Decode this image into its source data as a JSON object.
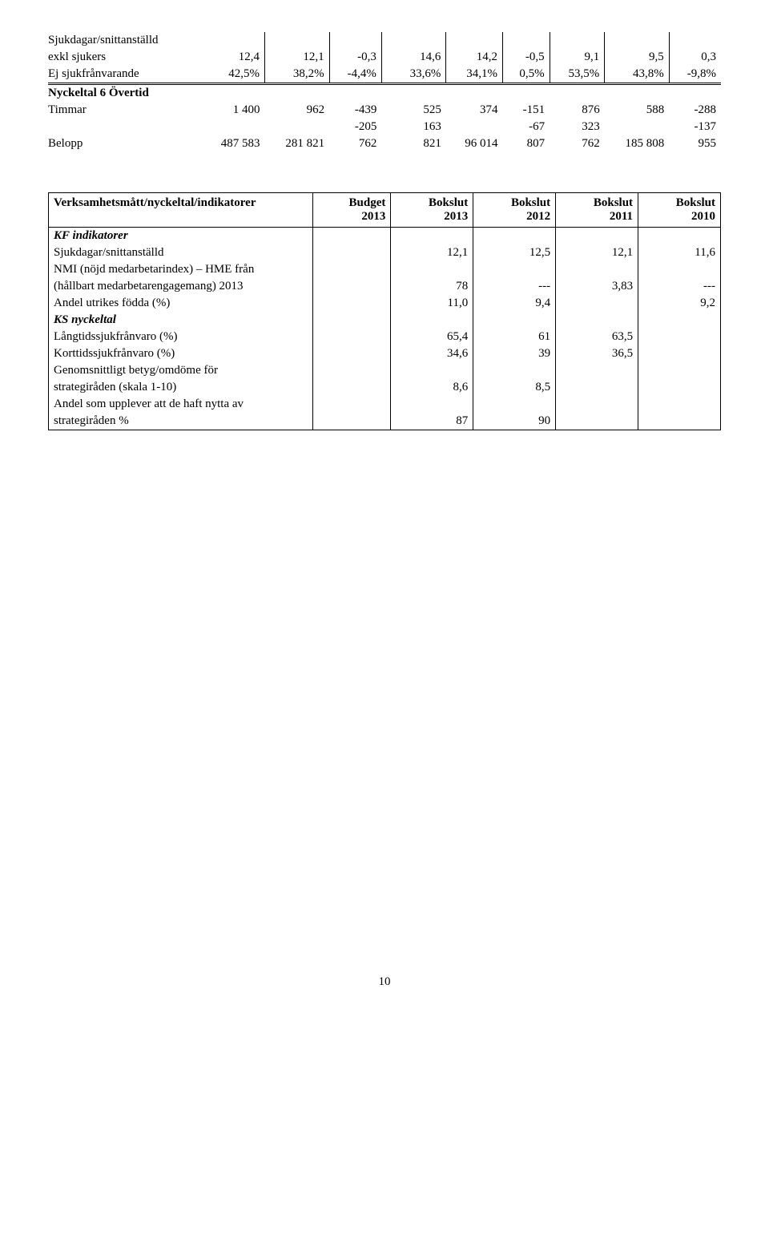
{
  "topTable": {
    "rows": [
      {
        "label": "Sjukdagar/snittanställd",
        "cells": [
          "",
          "",
          "",
          "",
          "",
          "",
          "",
          "",
          "",
          ""
        ]
      },
      {
        "label": "exkl sjukers",
        "cells": [
          "12,4",
          "12,1",
          "-0,3",
          "",
          "14,6",
          "14,2",
          "-0,5",
          "9,1",
          "9,5",
          "0,3"
        ],
        "labelStyle": ""
      },
      {
        "label": "Ej sjukfrånvarande",
        "cells": [
          "42,5%",
          "38,2%",
          "-4,4%",
          "",
          "33,6%",
          "34,1%",
          "0,5%",
          "53,5%",
          "43,8%",
          "-9,8%"
        ],
        "doubleUnder": true
      }
    ],
    "section2Label": "Nyckeltal 6 Övertid",
    "rows2": [
      {
        "label": "Timmar",
        "cells": [
          "1 400",
          "962",
          "-439",
          "",
          "525",
          "374",
          "-151",
          "876",
          "588",
          "-288"
        ]
      },
      {
        "label": "",
        "cells": [
          "",
          "",
          "-205",
          "",
          "163",
          "",
          "-67",
          "323",
          "",
          "-137"
        ]
      },
      {
        "label": "Belopp",
        "cells": [
          "487 583",
          "281 821",
          "762",
          "",
          "821",
          "96 014",
          "807",
          "762",
          "185 808",
          "955"
        ]
      }
    ]
  },
  "indTable": {
    "headers": [
      "Verksamhetsmått/nyckeltal/indikatorer",
      "Budget 2013",
      "Bokslut 2013",
      "Bokslut 2012",
      "Bokslut 2011",
      "Bokslut 2010"
    ],
    "rows": [
      {
        "label": "KF indikatorer",
        "section": true
      },
      {
        "label": "Sjukdagar/snittanställd",
        "cells": [
          "",
          "12,1",
          "12,5",
          "12,1",
          "11,6"
        ]
      },
      {
        "label": "NMI (nöjd medarbetarindex) – HME från",
        "cells": [
          "",
          "",
          "",
          "",
          ""
        ]
      },
      {
        "label": "(hållbart medarbetarengagemang) 2013",
        "cells": [
          "",
          "78",
          "---",
          "3,83",
          "---"
        ]
      },
      {
        "label": "Andel utrikes födda (%)",
        "cells": [
          "",
          "11,0",
          "9,4",
          "",
          "9,2"
        ]
      },
      {
        "label": "KS nyckeltal",
        "section": true
      },
      {
        "label": "Långtidssjukfrånvaro (%)",
        "cells": [
          "",
          "65,4",
          "61",
          "63,5",
          ""
        ]
      },
      {
        "label": "Korttidssjukfrånvaro (%)",
        "cells": [
          "",
          "34,6",
          "39",
          "36,5",
          ""
        ]
      },
      {
        "label": "Genomsnittligt betyg/omdöme för",
        "cells": [
          "",
          "",
          "",
          "",
          ""
        ]
      },
      {
        "label": "strategiråden (skala 1-10)",
        "cells": [
          "",
          "8,6",
          "8,5",
          "",
          ""
        ]
      },
      {
        "label": "Andel som upplever att de haft nytta av",
        "cells": [
          "",
          "",
          "",
          "",
          ""
        ]
      },
      {
        "label": "strategiråden %",
        "cells": [
          "",
          "87",
          "90",
          "",
          ""
        ]
      }
    ]
  },
  "pageNumber": "10"
}
